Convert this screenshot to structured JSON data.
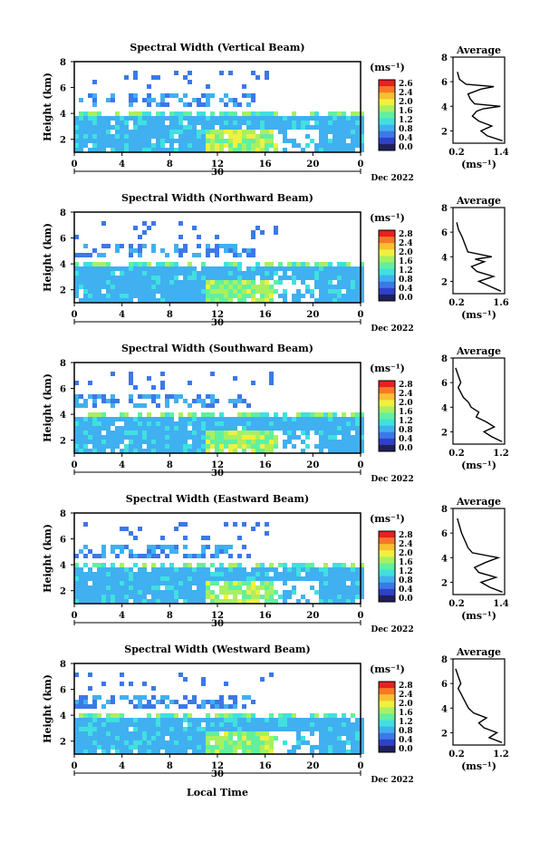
{
  "figure": {
    "xlabel": "Local Time",
    "date_label": "Dec 2022",
    "day_label": "30",
    "x_ticks": [
      "0",
      "4",
      "8",
      "12",
      "16",
      "20",
      "0"
    ],
    "y_ticks": [
      "2",
      "4",
      "6",
      "8"
    ],
    "ylabel": "Height (km)",
    "unit": "(ms⁻¹)",
    "avg_title": "Average",
    "avg_xlabel": "(ms⁻¹)",
    "avg_y_ticks": [
      "2",
      "4",
      "6",
      "8"
    ],
    "colorbar_colors": [
      "#20205a",
      "#3040c8",
      "#3c78e8",
      "#40b0f0",
      "#40e0e0",
      "#60f0a0",
      "#a8f060",
      "#f0f040",
      "#f8c030",
      "#f87828",
      "#e82020"
    ]
  },
  "chart_data": [
    {
      "type": "heatmap",
      "title": "Spectral Width (Vertical Beam)",
      "xlabel": "Local Time",
      "ylabel": "Height (km)",
      "xlim": [
        0,
        24
      ],
      "ylim": [
        1,
        8
      ],
      "colorbar_ticks": [
        "2.6",
        "2.4",
        "2.0",
        "1.6",
        "1.2",
        "0.8",
        "0.4",
        "0.0"
      ],
      "average": {
        "x_ticks": [
          "0.2",
          "1.4"
        ],
        "xlim": [
          0.2,
          1.4
        ],
        "height_km": [
          1.2,
          1.6,
          2.0,
          2.4,
          2.8,
          3.2,
          3.6,
          3.8,
          4.0,
          4.2,
          4.6,
          5.0,
          5.4,
          5.6,
          5.8,
          6.2,
          6.8
        ],
        "width": [
          1.35,
          1.0,
          0.85,
          1.1,
          0.8,
          0.65,
          0.75,
          0.9,
          1.3,
          0.7,
          0.6,
          0.55,
          0.85,
          1.15,
          0.5,
          0.35,
          0.3
        ]
      }
    },
    {
      "type": "heatmap",
      "title": "Spectral Width (Northward Beam)",
      "xlabel": "Local Time",
      "ylabel": "Height (km)",
      "xlim": [
        0,
        24
      ],
      "ylim": [
        1,
        8
      ],
      "colorbar_ticks": [
        "2.8",
        "2.4",
        "2.0",
        "1.6",
        "1.2",
        "0.8",
        "0.4",
        "0.0"
      ],
      "average": {
        "x_ticks": [
          "0.2",
          "1.6"
        ],
        "xlim": [
          0.2,
          1.6
        ],
        "height_km": [
          1.2,
          1.6,
          2.0,
          2.4,
          2.8,
          3.2,
          3.6,
          3.8,
          4.0,
          4.4,
          4.8,
          5.2,
          5.6,
          6.2,
          6.8
        ],
        "width": [
          1.5,
          1.2,
          0.9,
          1.3,
          0.85,
          0.7,
          1.05,
          0.8,
          1.25,
          0.6,
          0.55,
          0.5,
          0.45,
          0.35,
          0.3
        ]
      }
    },
    {
      "type": "heatmap",
      "title": "Spectral Width (Southward Beam)",
      "xlabel": "Local Time",
      "ylabel": "Height (km)",
      "xlim": [
        0,
        24
      ],
      "ylim": [
        1,
        8
      ],
      "colorbar_ticks": [
        "2.8",
        "2.4",
        "2.0",
        "1.6",
        "1.2",
        "0.8",
        "0.4",
        "0.0"
      ],
      "average": {
        "x_ticks": [
          "0.2",
          "1.2"
        ],
        "xlim": [
          0.2,
          1.2
        ],
        "height_km": [
          1.2,
          1.6,
          2.0,
          2.4,
          2.8,
          3.2,
          3.6,
          4.0,
          4.4,
          4.8,
          5.2,
          5.6,
          6.0,
          6.6,
          7.2
        ],
        "width": [
          1.15,
          0.95,
          0.8,
          1.0,
          0.85,
          0.65,
          0.7,
          0.55,
          0.5,
          0.4,
          0.35,
          0.3,
          0.35,
          0.3,
          0.25
        ]
      }
    },
    {
      "type": "heatmap",
      "title": "Spectral Width (Eastward Beam)",
      "xlabel": "Local Time",
      "ylabel": "Height (km)",
      "xlim": [
        0,
        24
      ],
      "ylim": [
        1,
        8
      ],
      "colorbar_ticks": [
        "2.8",
        "2.4",
        "2.0",
        "1.6",
        "1.2",
        "0.8",
        "0.4",
        "0.0"
      ],
      "average": {
        "x_ticks": [
          "0.2",
          "1.4"
        ],
        "xlim": [
          0.2,
          1.4
        ],
        "height_km": [
          1.2,
          1.6,
          2.0,
          2.4,
          2.8,
          3.2,
          3.6,
          4.0,
          4.4,
          4.8,
          5.2,
          5.6,
          6.0,
          6.6,
          7.2
        ],
        "width": [
          1.35,
          1.05,
          0.85,
          1.2,
          0.8,
          0.7,
          0.95,
          1.25,
          0.65,
          0.55,
          0.5,
          0.45,
          0.4,
          0.35,
          0.3
        ]
      }
    },
    {
      "type": "heatmap",
      "title": "Spectral Width (Westward Beam)",
      "xlabel": "Local Time",
      "ylabel": "Height (km)",
      "xlim": [
        0,
        24
      ],
      "ylim": [
        1,
        8
      ],
      "colorbar_ticks": [
        "2.8",
        "2.4",
        "2.0",
        "1.6",
        "1.2",
        "0.8",
        "0.4",
        "0.0"
      ],
      "average": {
        "x_ticks": [
          "0.2",
          "1.2"
        ],
        "xlim": [
          0.2,
          1.2
        ],
        "height_km": [
          1.2,
          1.6,
          2.0,
          2.4,
          2.8,
          3.2,
          3.6,
          4.0,
          4.4,
          4.8,
          5.2,
          5.6,
          6.0,
          6.6,
          7.2
        ],
        "width": [
          1.15,
          0.9,
          1.05,
          0.8,
          0.7,
          0.85,
          0.6,
          0.5,
          0.45,
          0.4,
          0.35,
          0.3,
          0.35,
          0.3,
          0.25
        ]
      }
    }
  ]
}
